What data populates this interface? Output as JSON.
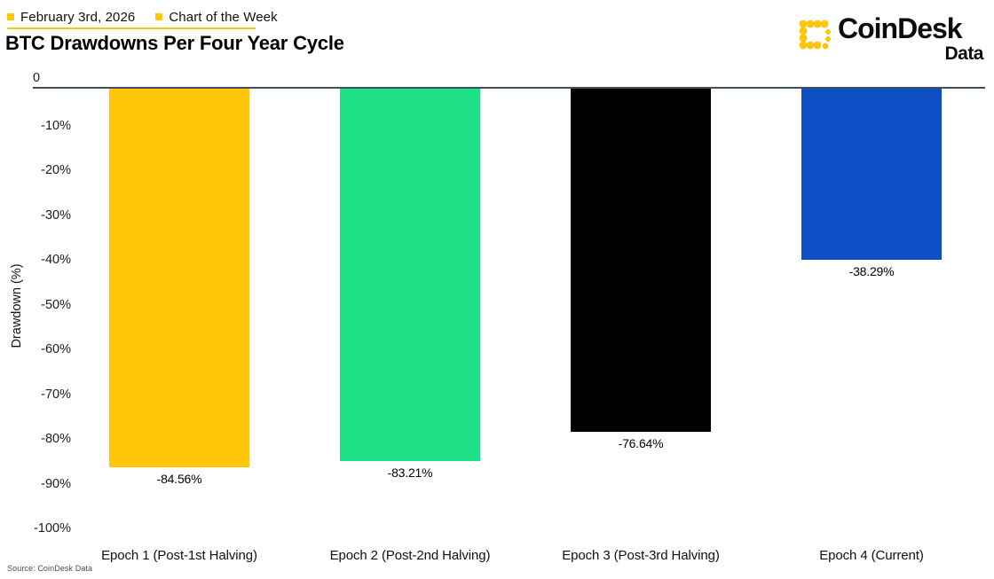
{
  "header": {
    "date_label": "February 3rd, 2026",
    "series_label": "Chart of the Week",
    "title": "BTC Drawdowns Per Four Year Cycle",
    "accent_color": "#ffc60a"
  },
  "brand": {
    "name": "CoinDesk",
    "sub": "Data",
    "logo_color": "#ffc60a"
  },
  "source": "Source: CoinDesk Data",
  "chart_data": {
    "type": "bar",
    "title": "BTC Drawdowns Per Four Year Cycle",
    "categories": [
      "Epoch 1 (Post-1st Halving)",
      "Epoch 2 (Post-2nd Halving)",
      "Epoch 3 (Post-3rd Halving)",
      "Epoch 4 (Current)"
    ],
    "values": [
      -84.56,
      -83.21,
      -76.64,
      -38.29
    ],
    "value_labels": [
      "-84.56%",
      "-83.21%",
      "-76.64%",
      "-38.29%"
    ],
    "bar_colors": [
      "#ffc60a",
      "#1ee087",
      "#000000",
      "#0f4fc5"
    ],
    "xlabel": "",
    "ylabel": "Drawdown (%)",
    "ylim": [
      -100,
      0
    ],
    "yticks": [
      "0",
      "-10%",
      "-20%",
      "-30%",
      "-40%",
      "-50%",
      "-60%",
      "-70%",
      "-80%",
      "-90%",
      "-100%"
    ],
    "ytick_values": [
      0,
      -10,
      -20,
      -30,
      -40,
      -50,
      -60,
      -70,
      -80,
      -90,
      -100
    ],
    "axis_line_color": "#3e5060",
    "grid": false,
    "legend_position": "none"
  }
}
